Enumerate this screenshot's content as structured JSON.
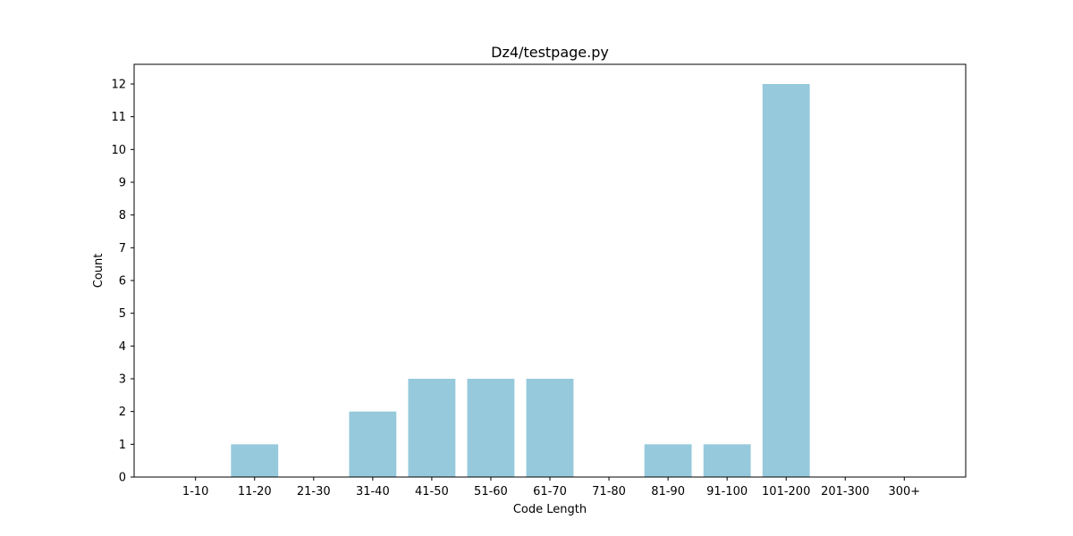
{
  "chart_data": {
    "type": "bar",
    "title": "Dz4/testpage.py",
    "xlabel": "Code Length",
    "ylabel": "Count",
    "categories": [
      "1-10",
      "11-20",
      "21-30",
      "31-40",
      "41-50",
      "51-60",
      "61-70",
      "71-80",
      "81-90",
      "91-100",
      "101-200",
      "201-300",
      "300+"
    ],
    "values": [
      0,
      1,
      0,
      2,
      3,
      3,
      3,
      0,
      1,
      1,
      12,
      0,
      0
    ],
    "yticks": [
      0,
      1,
      2,
      3,
      4,
      5,
      6,
      7,
      8,
      9,
      10,
      11,
      12
    ],
    "ylim": [
      0,
      12.6
    ],
    "grid": false,
    "bar_color": "#96c9dc"
  }
}
